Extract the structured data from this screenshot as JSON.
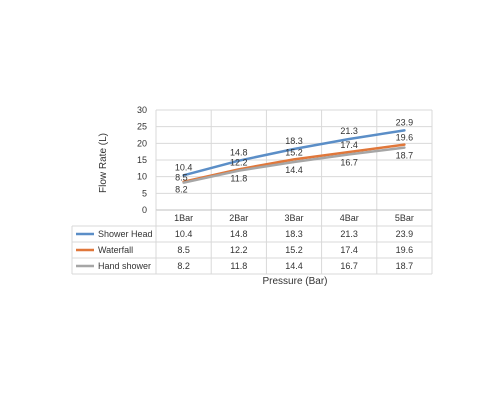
{
  "chart_data": {
    "type": "line",
    "categories": [
      "1Bar",
      "2Bar",
      "3Bar",
      "4Bar",
      "5Bar"
    ],
    "series": [
      {
        "name": "Shower Head",
        "values": [
          10.4,
          14.8,
          18.3,
          21.3,
          23.9
        ],
        "color": "#5b8ec7"
      },
      {
        "name": "Waterfall",
        "values": [
          8.5,
          12.2,
          15.2,
          17.4,
          19.6
        ],
        "color": "#e0773a"
      },
      {
        "name": "Hand shower",
        "values": [
          8.2,
          11.8,
          14.4,
          16.7,
          18.7
        ],
        "color": "#a6a6a6"
      }
    ],
    "xlabel": "Pressure (Bar)",
    "ylabel": "Flow Rate (L)",
    "ylim": [
      0,
      30
    ],
    "yticks": [
      0,
      5,
      10,
      15,
      20,
      25,
      30
    ],
    "grid": true,
    "legend": "data-table"
  }
}
